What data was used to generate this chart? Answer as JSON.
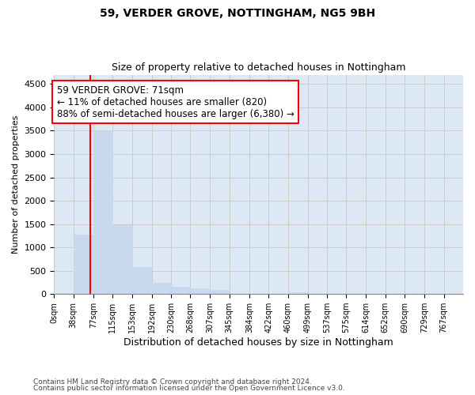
{
  "title1": "59, VERDER GROVE, NOTTINGHAM, NG5 9BH",
  "title2": "Size of property relative to detached houses in Nottingham",
  "xlabel": "Distribution of detached houses by size in Nottingham",
  "ylabel": "Number of detached properties",
  "bin_labels": [
    "0sqm",
    "38sqm",
    "77sqm",
    "115sqm",
    "153sqm",
    "192sqm",
    "230sqm",
    "268sqm",
    "307sqm",
    "345sqm",
    "384sqm",
    "422sqm",
    "460sqm",
    "499sqm",
    "537sqm",
    "575sqm",
    "614sqm",
    "652sqm",
    "690sqm",
    "729sqm",
    "767sqm"
  ],
  "bar_values": [
    20,
    1280,
    3500,
    1470,
    580,
    240,
    150,
    120,
    80,
    0,
    0,
    0,
    30,
    0,
    0,
    0,
    0,
    0,
    0,
    0,
    0
  ],
  "bar_color": "#c8d8ee",
  "bar_edgecolor": "#c8d8ee",
  "grid_color": "#cccccc",
  "background_color": "#dde8f5",
  "red_line_x": 71,
  "annotation_text": "59 VERDER GROVE: 71sqm\n← 11% of detached houses are smaller (820)\n88% of semi-detached houses are larger (6,380) →",
  "annotation_box_color": "white",
  "annotation_box_edgecolor": "red",
  "red_line_color": "red",
  "ylim": [
    0,
    4700
  ],
  "yticks": [
    0,
    500,
    1000,
    1500,
    2000,
    2500,
    3000,
    3500,
    4000,
    4500
  ],
  "footnote1": "Contains HM Land Registry data © Crown copyright and database right 2024.",
  "footnote2": "Contains public sector information licensed under the Open Government Licence v3.0."
}
